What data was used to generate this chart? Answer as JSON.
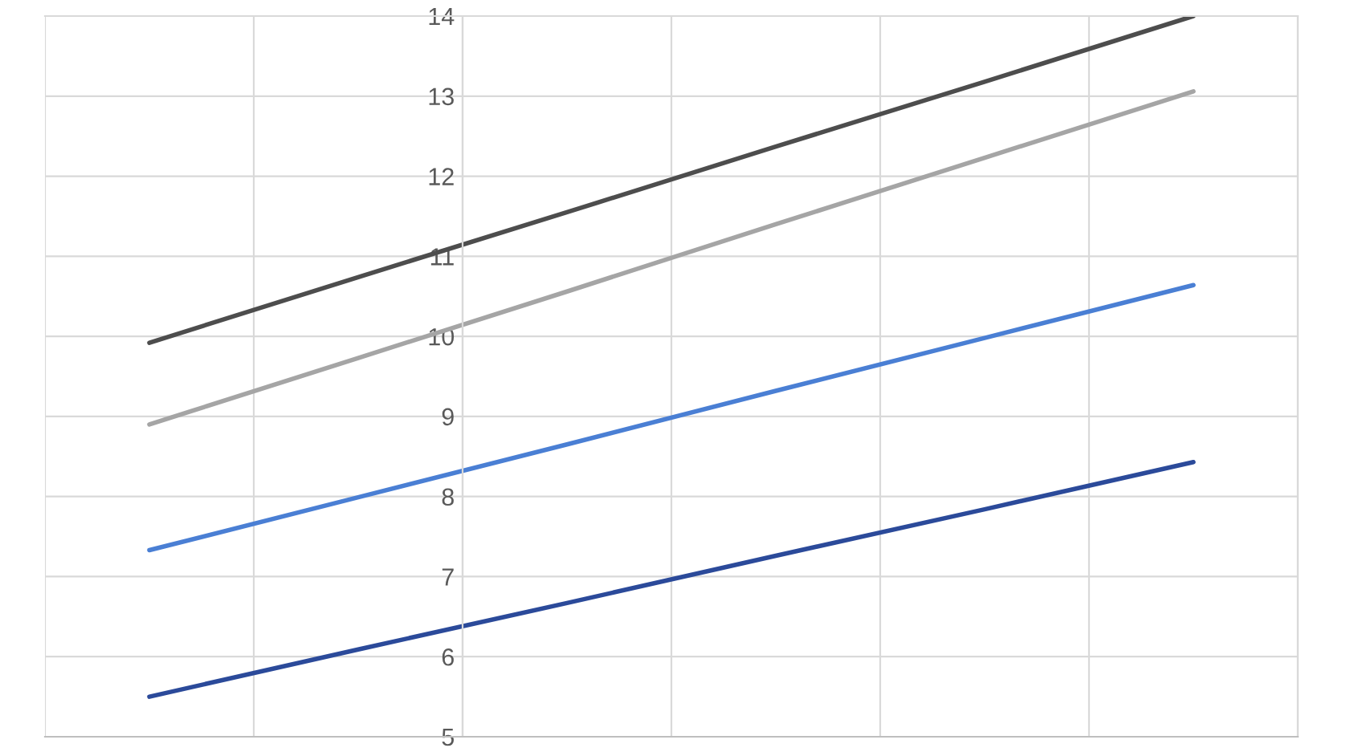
{
  "chart_data": {
    "type": "line",
    "categories": [
      null,
      null,
      null,
      null,
      null,
      null
    ],
    "series": [
      {
        "color": "#4d4d4d",
        "values": [
          9.92,
          10.74,
          11.55,
          12.37,
          13.18,
          14.0
        ]
      },
      {
        "color": "#a5a5a5",
        "values": [
          8.9,
          9.73,
          10.56,
          11.4,
          12.23,
          13.06
        ]
      },
      {
        "color": "#4a7fd4",
        "values": [
          7.33,
          7.99,
          8.65,
          9.32,
          9.98,
          10.64
        ]
      },
      {
        "color": "#2b4a9a",
        "values": [
          5.5,
          6.09,
          6.67,
          7.26,
          7.84,
          8.43
        ]
      }
    ],
    "ylim": [
      5,
      14
    ],
    "yticks": [
      5,
      6,
      7,
      8,
      9,
      10,
      11,
      12,
      13,
      14
    ],
    "tick_labels": "y",
    "grid": true,
    "marker": "none",
    "line_style": "solid",
    "legend": false
  }
}
